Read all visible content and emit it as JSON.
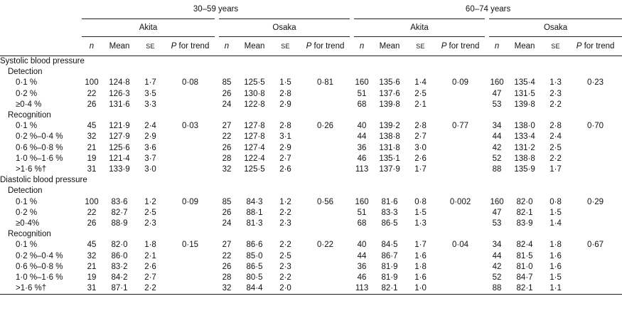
{
  "table": {
    "groups": [
      "30–59 years",
      "60–74 years"
    ],
    "subgroups": [
      "Akita",
      "Osaka",
      "Akita",
      "Osaka"
    ],
    "columns": [
      "n",
      "Mean",
      "SE",
      "P for trend"
    ],
    "sections": [
      {
        "title": "Systolic blood pressure",
        "subsections": [
          {
            "title": "Detection",
            "rows": [
              {
                "label": "0·1 %",
                "cells": [
                  "100",
                  "124·8",
                  "1·7",
                  "0·08",
                  "85",
                  "125·5",
                  "1·5",
                  "0·81",
                  "160",
                  "135·6",
                  "1·4",
                  "0·09",
                  "160",
                  "135·4",
                  "1·3",
                  "0·23"
                ]
              },
              {
                "label": "0·2 %",
                "cells": [
                  "22",
                  "126·3",
                  "3·5",
                  null,
                  "26",
                  "130·8",
                  "2·8",
                  null,
                  "51",
                  "137·6",
                  "2·5",
                  null,
                  "47",
                  "131·5",
                  "2·3",
                  null
                ]
              },
              {
                "label": "≥0·4 %",
                "cells": [
                  "26",
                  "131·6",
                  "3·3",
                  null,
                  "24",
                  "122·8",
                  "2·9",
                  null,
                  "68",
                  "139·8",
                  "2·1",
                  null,
                  "53",
                  "139·8",
                  "2·2",
                  null
                ]
              }
            ]
          },
          {
            "title": "Recognition",
            "rows": [
              {
                "label": "0·1 %",
                "cells": [
                  "45",
                  "121·9",
                  "2·4",
                  "0·03",
                  "27",
                  "127·8",
                  "2·8",
                  "0·26",
                  "40",
                  "139·2",
                  "2·8",
                  "0·77",
                  "34",
                  "138·0",
                  "2·8",
                  "0·70"
                ]
              },
              {
                "label": "0·2 %–0·4 %",
                "cells": [
                  "32",
                  "127·9",
                  "2·9",
                  null,
                  "22",
                  "127·8",
                  "3·1",
                  null,
                  "44",
                  "138·8",
                  "2·7",
                  null,
                  "44",
                  "133·4",
                  "2·4",
                  null
                ]
              },
              {
                "label": "0·6 %–0·8 %",
                "cells": [
                  "21",
                  "125·6",
                  "3·6",
                  null,
                  "26",
                  "127·4",
                  "2·9",
                  null,
                  "36",
                  "131·8",
                  "3·0",
                  null,
                  "42",
                  "131·2",
                  "2·5",
                  null
                ]
              },
              {
                "label": "1·0 %–1·6 %",
                "cells": [
                  "19",
                  "121·4",
                  "3·7",
                  null,
                  "28",
                  "122·4",
                  "2·7",
                  null,
                  "46",
                  "135·1",
                  "2·6",
                  null,
                  "52",
                  "138·8",
                  "2·2",
                  null
                ]
              },
              {
                "label": ">1·6 %†",
                "cells": [
                  "31",
                  "133·9",
                  "3·0",
                  null,
                  "32",
                  "125·5",
                  "2·6",
                  null,
                  "113",
                  "137·9",
                  "1·7",
                  null,
                  "88",
                  "135·9",
                  "1·7",
                  null
                ]
              }
            ]
          }
        ]
      },
      {
        "title": "Diastolic blood pressure",
        "subsections": [
          {
            "title": "Detection",
            "rows": [
              {
                "label": "0·1 %",
                "cells": [
                  "100",
                  "83·6",
                  "1·2",
                  "0·09",
                  "85",
                  "84·3",
                  "1·2",
                  "0·56",
                  "160",
                  "81·6",
                  "0·8",
                  "0·002",
                  "160",
                  "82·0",
                  "0·8",
                  "0·29"
                ]
              },
              {
                "label": "0·2 %",
                "cells": [
                  "22",
                  "82·7",
                  "2·5",
                  null,
                  "26",
                  "88·1",
                  "2·2",
                  null,
                  "51",
                  "83·3",
                  "1·5",
                  null,
                  "47",
                  "82·1",
                  "1·5",
                  null
                ]
              },
              {
                "label": "≥0·4%",
                "cells": [
                  "26",
                  "88·9",
                  "2·3",
                  null,
                  "24",
                  "81·3",
                  "2·3",
                  null,
                  "68",
                  "86·5",
                  "1·3",
                  null,
                  "53",
                  "83·9",
                  "1·4",
                  null
                ]
              }
            ]
          },
          {
            "title": "Recognition",
            "rows": [
              {
                "label": "0·1 %",
                "cells": [
                  "45",
                  "82·0",
                  "1·8",
                  "0·15",
                  "27",
                  "86·6",
                  "2·2",
                  "0·22",
                  "40",
                  "84·5",
                  "1·7",
                  "0·04",
                  "34",
                  "82·4",
                  "1·8",
                  "0·67"
                ]
              },
              {
                "label": "0·2 %–0·4 %",
                "cells": [
                  "32",
                  "86·0",
                  "2·1",
                  null,
                  "22",
                  "85·0",
                  "2·5",
                  null,
                  "44",
                  "86·7",
                  "1·6",
                  null,
                  "44",
                  "81·5",
                  "1·6",
                  null
                ]
              },
              {
                "label": "0·6 %–0·8 %",
                "cells": [
                  "21",
                  "83·2",
                  "2·6",
                  null,
                  "26",
                  "86·5",
                  "2·3",
                  null,
                  "36",
                  "81·9",
                  "1·8",
                  null,
                  "42",
                  "81·0",
                  "1·6",
                  null
                ]
              },
              {
                "label": "1·0 %–1·6 %",
                "cells": [
                  "19",
                  "84·2",
                  "2·7",
                  null,
                  "28",
                  "80·5",
                  "2·2",
                  null,
                  "46",
                  "81·9",
                  "1·6",
                  null,
                  "52",
                  "84·7",
                  "1·5",
                  null
                ]
              },
              {
                "label": ">1·6 %†",
                "cells": [
                  "31",
                  "87·1",
                  "2·2",
                  null,
                  "32",
                  "84·4",
                  "2·0",
                  null,
                  "113",
                  "82·1",
                  "1·0",
                  null,
                  "88",
                  "82·1",
                  "1·1",
                  null
                ]
              }
            ]
          }
        ]
      }
    ]
  }
}
